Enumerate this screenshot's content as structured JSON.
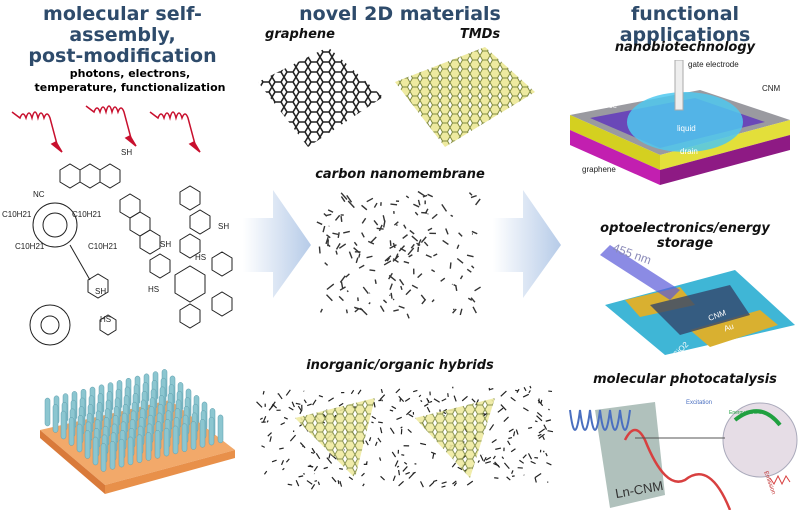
{
  "columns": {
    "left": {
      "title_line1": "molecular self-assembly,",
      "title_line2": "post-modification",
      "stimuli_line1": "photons, electrons,",
      "stimuli_line2": "temperature, functionalization",
      "molecule_labels": [
        "SH",
        "NC",
        "C10H21",
        "C10H21",
        "C10H21",
        "C10H21",
        "SH",
        "SH",
        "SH",
        "HS",
        "HS",
        "HS"
      ]
    },
    "middle": {
      "title": "novel 2D materials",
      "graphene": "graphene",
      "tmds": "TMDs",
      "cnm": "carbon nanomembrane",
      "hybrids": "inorganic/organic hybrids"
    },
    "right": {
      "title": "functional applications",
      "nanobio": {
        "title": "nanobiotechnology",
        "labels": {
          "gate": "gate electrode",
          "cnm": "CNM",
          "source": "source",
          "liquid": "liquid",
          "drain": "drain",
          "graphene": "graphene"
        }
      },
      "opto": {
        "title": "optoelectronics/energy storage",
        "labels": {
          "wavelength": "455 nm",
          "cnm": "CNM",
          "au": "Au",
          "substrate": "SiO2"
        }
      },
      "photocat": {
        "title": "molecular photocatalysis",
        "labels": {
          "excitation": "Excitation",
          "energy_transfer": "Energy transfer",
          "emission": "Emission",
          "ln_cnm": "Ln-CNM"
        }
      }
    }
  },
  "colors": {
    "title": "#2e4b6b",
    "arrow": "#c9d9ee",
    "stimulus": "#c8102e",
    "tmd": "#e6e49a",
    "gold": "#d9b030",
    "magenta": "#b0309a",
    "substrate": "#3fb6d6"
  }
}
